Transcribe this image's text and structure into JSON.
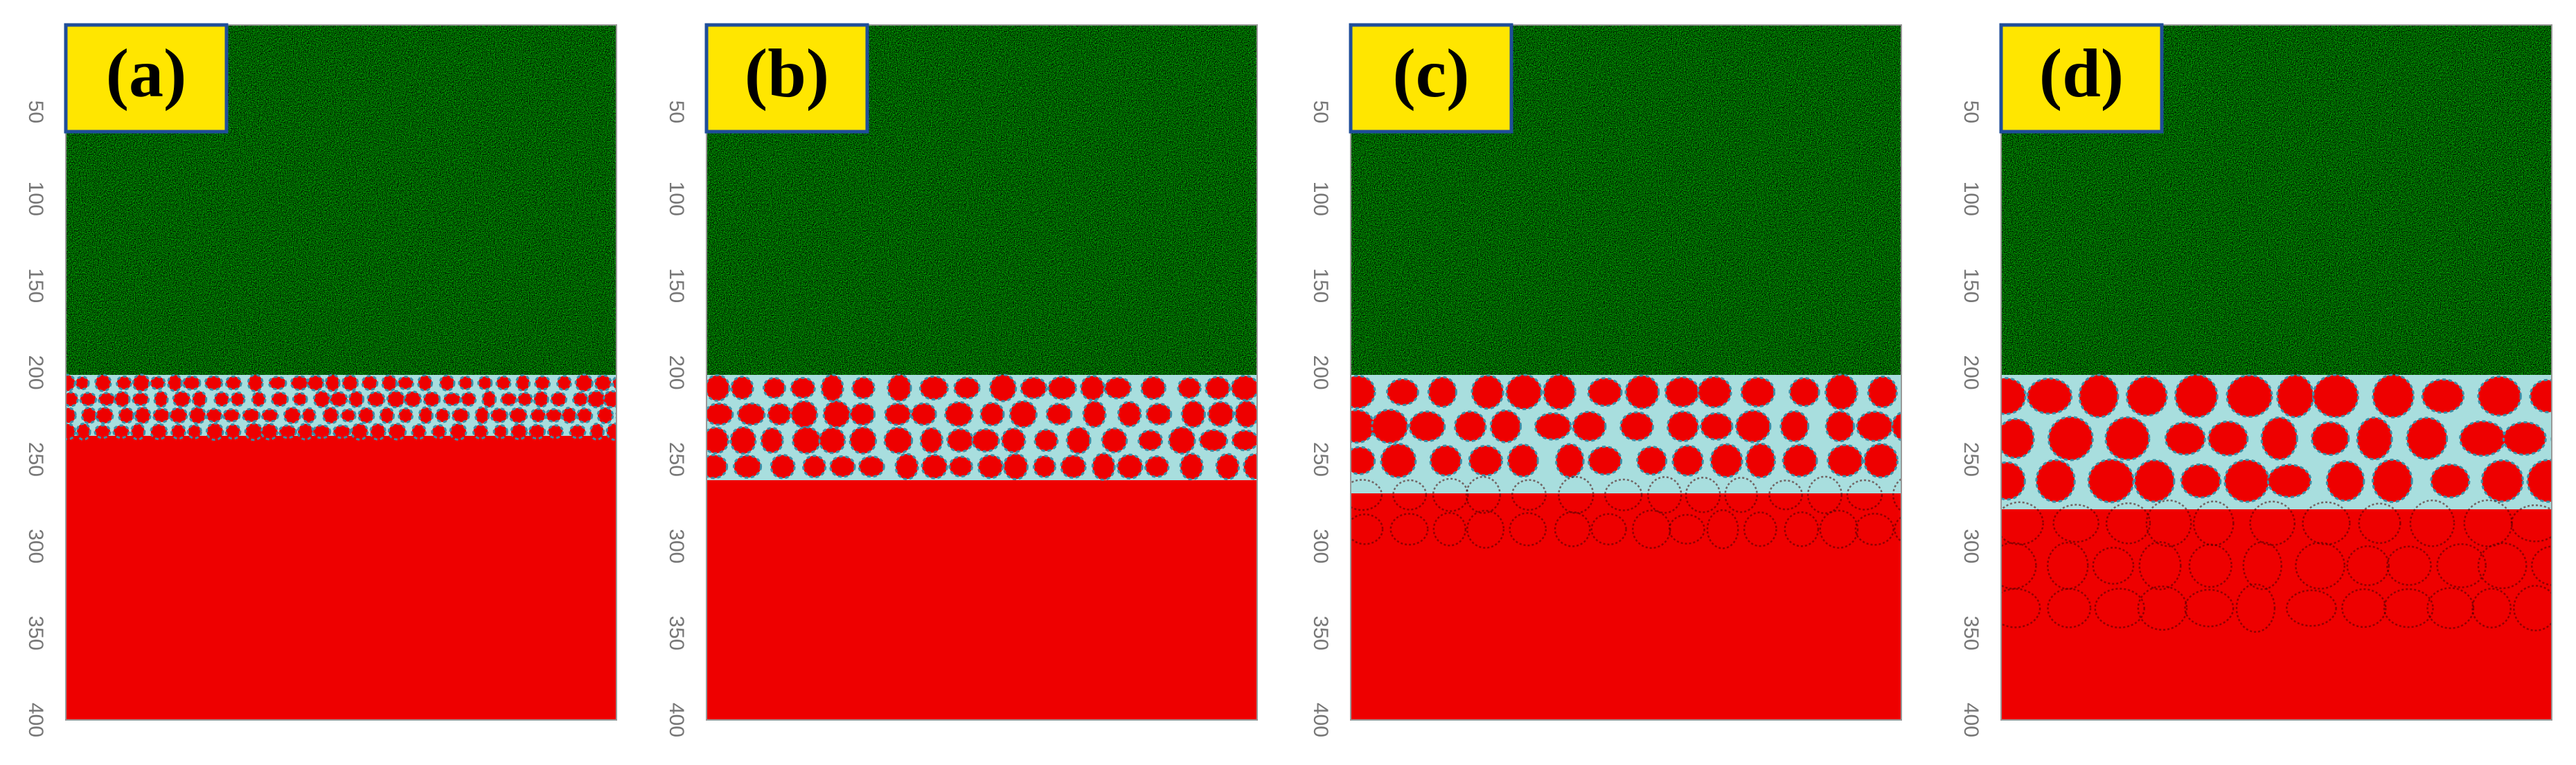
{
  "panels": [
    {
      "label": "(a)"
    },
    {
      "label": "(b)"
    },
    {
      "label": "(c)"
    },
    {
      "label": "(d)"
    }
  ],
  "axis_ticks": [
    50,
    100,
    150,
    200,
    250,
    300,
    350,
    400
  ]
}
